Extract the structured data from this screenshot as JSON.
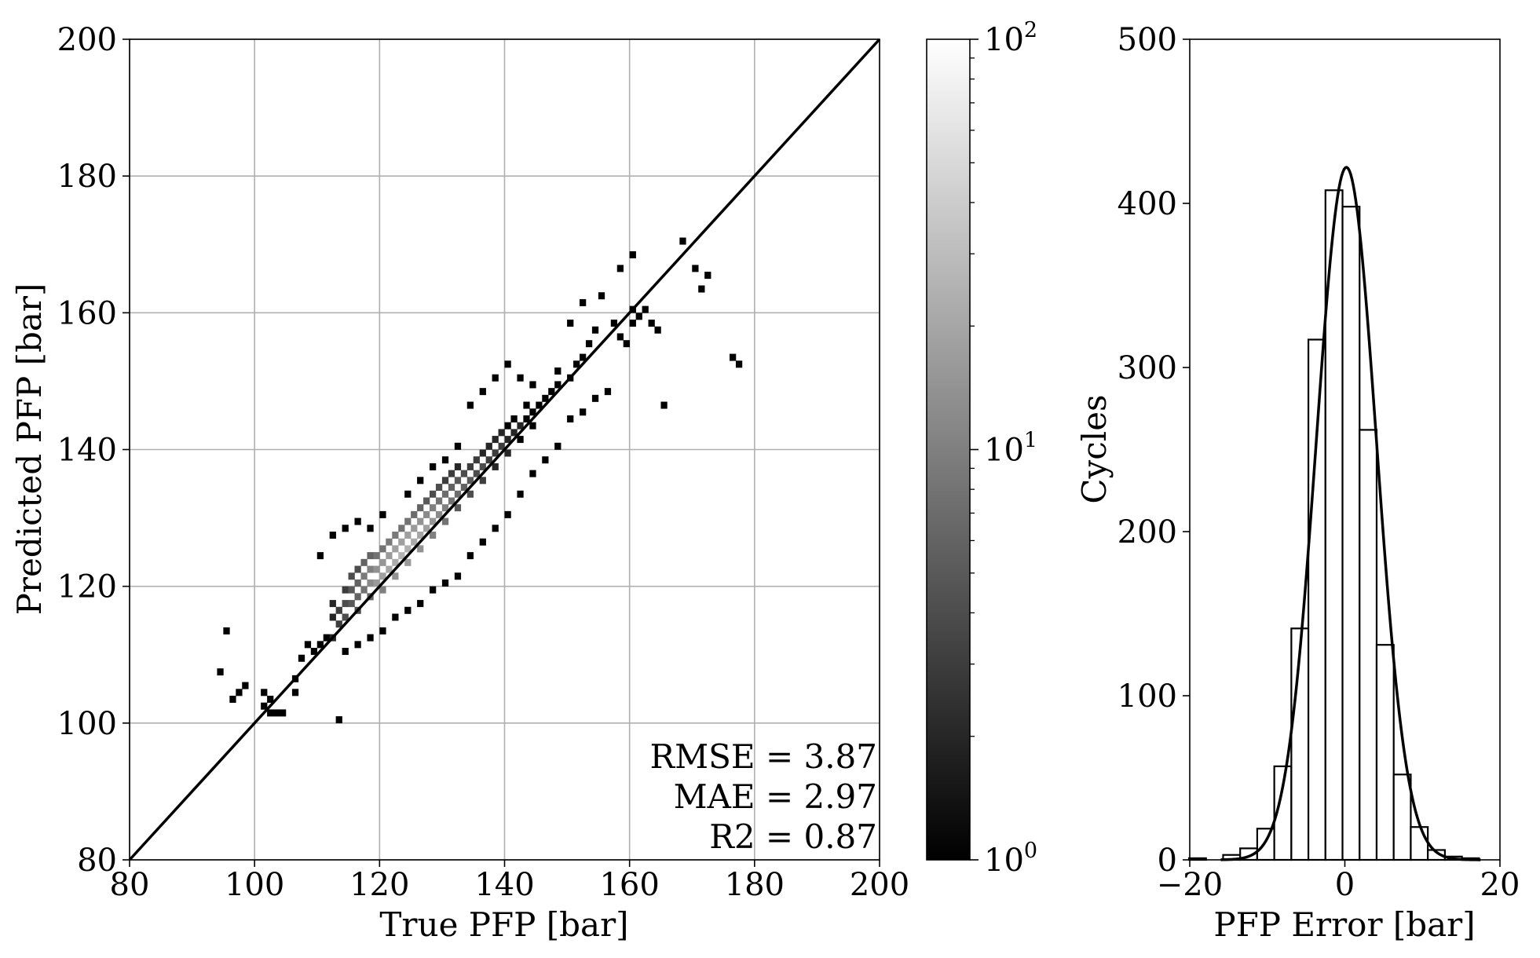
{
  "chart_data": [
    {
      "type": "heatmap",
      "chart_kind": "2D density histogram with identity line",
      "xlabel": "True PFP [bar]",
      "ylabel": "Predicted PFP [bar]",
      "xlim": [
        80,
        200
      ],
      "ylim": [
        80,
        200
      ],
      "xticks": [
        "80",
        "100",
        "120",
        "140",
        "160",
        "180",
        "200"
      ],
      "yticks": [
        "80",
        "100",
        "120",
        "140",
        "160",
        "180",
        "200"
      ],
      "grid": true,
      "identity_line": [
        [
          80,
          80
        ],
        [
          200,
          200
        ]
      ],
      "colormap": "gray",
      "color_scale": "log",
      "colorbar": {
        "min": 1,
        "max": 100,
        "ticks": [
          {
            "base": "10",
            "exp": "0"
          },
          {
            "base": "10",
            "exp": "1"
          },
          {
            "base": "10",
            "exp": "2"
          }
        ]
      },
      "annotations": [
        "RMSE = 3.87",
        "MAE = 2.97",
        "R2 = 0.87"
      ],
      "cells": [
        [
          95,
          113,
          1
        ],
        [
          96,
          103,
          1
        ],
        [
          97,
          104,
          1
        ],
        [
          98,
          105,
          1
        ],
        [
          94,
          107,
          1
        ],
        [
          101,
          102,
          1
        ],
        [
          102,
          101,
          1
        ],
        [
          103,
          101,
          1
        ],
        [
          104,
          101,
          1
        ],
        [
          101,
          104,
          1
        ],
        [
          102,
          103,
          1
        ],
        [
          106,
          104,
          1
        ],
        [
          106,
          106,
          1
        ],
        [
          113,
          100,
          1
        ],
        [
          107,
          109,
          1
        ],
        [
          108,
          111,
          1
        ],
        [
          109,
          110,
          1
        ],
        [
          110,
          111,
          1
        ],
        [
          111,
          112,
          1
        ],
        [
          112,
          112,
          2
        ],
        [
          112,
          115,
          2
        ],
        [
          112,
          117,
          2
        ],
        [
          113,
          114,
          3
        ],
        [
          113,
          116,
          3
        ],
        [
          114,
          115,
          4
        ],
        [
          114,
          117,
          4
        ],
        [
          114,
          119,
          3
        ],
        [
          115,
          117,
          5
        ],
        [
          115,
          119,
          5
        ],
        [
          115,
          121,
          4
        ],
        [
          116,
          116,
          4
        ],
        [
          116,
          118,
          6
        ],
        [
          116,
          120,
          6
        ],
        [
          116,
          122,
          4
        ],
        [
          117,
          119,
          8
        ],
        [
          117,
          121,
          9
        ],
        [
          117,
          123,
          6
        ],
        [
          118,
          118,
          6
        ],
        [
          118,
          120,
          12
        ],
        [
          118,
          122,
          10
        ],
        [
          118,
          124,
          6
        ],
        [
          119,
          120,
          16
        ],
        [
          119,
          122,
          14
        ],
        [
          119,
          124,
          8
        ],
        [
          120,
          119,
          10
        ],
        [
          120,
          121,
          18
        ],
        [
          120,
          123,
          15
        ],
        [
          120,
          125,
          8
        ],
        [
          121,
          122,
          20
        ],
        [
          121,
          124,
          16
        ],
        [
          121,
          126,
          9
        ],
        [
          122,
          121,
          14
        ],
        [
          122,
          123,
          22
        ],
        [
          122,
          125,
          18
        ],
        [
          122,
          127,
          9
        ],
        [
          123,
          124,
          25
        ],
        [
          123,
          126,
          18
        ],
        [
          123,
          128,
          8
        ],
        [
          124,
          123,
          16
        ],
        [
          124,
          125,
          24
        ],
        [
          124,
          127,
          18
        ],
        [
          124,
          129,
          8
        ],
        [
          125,
          126,
          22
        ],
        [
          125,
          128,
          16
        ],
        [
          125,
          130,
          7
        ],
        [
          126,
          125,
          14
        ],
        [
          126,
          127,
          20
        ],
        [
          126,
          129,
          14
        ],
        [
          126,
          131,
          6
        ],
        [
          127,
          128,
          18
        ],
        [
          127,
          130,
          12
        ],
        [
          127,
          132,
          5
        ],
        [
          128,
          127,
          10
        ],
        [
          128,
          129,
          15
        ],
        [
          128,
          131,
          10
        ],
        [
          128,
          133,
          4
        ],
        [
          129,
          130,
          12
        ],
        [
          129,
          132,
          8
        ],
        [
          129,
          134,
          4
        ],
        [
          130,
          129,
          8
        ],
        [
          130,
          131,
          10
        ],
        [
          130,
          133,
          7
        ],
        [
          130,
          135,
          3
        ],
        [
          131,
          132,
          8
        ],
        [
          131,
          134,
          6
        ],
        [
          131,
          136,
          3
        ],
        [
          132,
          131,
          5
        ],
        [
          132,
          133,
          7
        ],
        [
          132,
          135,
          5
        ],
        [
          132,
          137,
          2
        ],
        [
          133,
          134,
          6
        ],
        [
          133,
          136,
          4
        ],
        [
          134,
          133,
          4
        ],
        [
          134,
          135,
          5
        ],
        [
          134,
          137,
          3
        ],
        [
          135,
          136,
          4
        ],
        [
          135,
          138,
          3
        ],
        [
          136,
          135,
          3
        ],
        [
          136,
          137,
          4
        ],
        [
          136,
          139,
          2
        ],
        [
          137,
          138,
          3
        ],
        [
          137,
          140,
          2
        ],
        [
          138,
          137,
          2
        ],
        [
          138,
          139,
          3
        ],
        [
          138,
          141,
          2
        ],
        [
          139,
          140,
          3
        ],
        [
          139,
          142,
          2
        ],
        [
          140,
          139,
          2
        ],
        [
          140,
          141,
          2
        ],
        [
          140,
          143,
          1
        ],
        [
          141,
          142,
          2
        ],
        [
          141,
          144,
          1
        ],
        [
          142,
          141,
          1
        ],
        [
          142,
          143,
          2
        ],
        [
          143,
          144,
          1
        ],
        [
          143,
          146,
          1
        ],
        [
          144,
          143,
          1
        ],
        [
          144,
          145,
          1
        ],
        [
          145,
          146,
          1
        ],
        [
          146,
          147,
          1
        ],
        [
          147,
          148,
          1
        ],
        [
          148,
          149,
          1
        ],
        [
          148,
          151,
          1
        ],
        [
          150,
          150,
          1
        ],
        [
          151,
          152,
          1
        ],
        [
          152,
          153,
          1
        ],
        [
          153,
          155,
          1
        ],
        [
          154,
          157,
          1
        ],
        [
          157,
          158,
          1
        ],
        [
          158,
          156,
          1
        ],
        [
          159,
          155,
          1
        ],
        [
          160,
          158,
          1
        ],
        [
          160,
          160,
          1
        ],
        [
          161,
          159,
          1
        ],
        [
          163,
          158,
          1
        ],
        [
          164,
          157,
          1
        ],
        [
          165,
          146,
          1
        ],
        [
          168,
          170,
          1
        ],
        [
          170,
          166,
          1
        ],
        [
          171,
          163,
          1
        ],
        [
          172,
          165,
          1
        ],
        [
          176,
          153,
          1
        ],
        [
          177,
          152,
          1
        ],
        [
          158,
          166,
          1
        ],
        [
          160,
          168,
          1
        ],
        [
          162,
          160,
          1
        ],
        [
          110,
          124,
          1
        ],
        [
          112,
          127,
          1
        ],
        [
          114,
          128,
          1
        ],
        [
          116,
          129,
          1
        ],
        [
          118,
          128,
          1
        ],
        [
          120,
          130,
          1
        ],
        [
          124,
          133,
          1
        ],
        [
          126,
          135,
          1
        ],
        [
          128,
          137,
          1
        ],
        [
          130,
          138,
          1
        ],
        [
          132,
          140,
          1
        ],
        [
          122,
          115,
          1
        ],
        [
          124,
          116,
          1
        ],
        [
          126,
          117,
          1
        ],
        [
          128,
          119,
          1
        ],
        [
          130,
          120,
          1
        ],
        [
          132,
          121,
          1
        ],
        [
          134,
          124,
          1
        ],
        [
          136,
          126,
          1
        ],
        [
          138,
          128,
          1
        ],
        [
          140,
          130,
          1
        ],
        [
          142,
          133,
          1
        ],
        [
          144,
          136,
          1
        ],
        [
          146,
          138,
          1
        ],
        [
          148,
          140,
          1
        ],
        [
          120,
          113,
          1
        ],
        [
          118,
          112,
          1
        ],
        [
          116,
          111,
          1
        ],
        [
          114,
          110,
          1
        ],
        [
          150,
          144,
          1
        ],
        [
          152,
          145,
          1
        ],
        [
          154,
          147,
          1
        ],
        [
          156,
          148,
          1
        ],
        [
          134,
          146,
          1
        ],
        [
          136,
          148,
          1
        ],
        [
          138,
          150,
          1
        ],
        [
          140,
          152,
          1
        ],
        [
          142,
          150,
          1
        ],
        [
          144,
          149,
          1
        ],
        [
          150,
          158,
          1
        ],
        [
          152,
          161,
          1
        ],
        [
          155,
          162,
          1
        ]
      ]
    },
    {
      "type": "histogram",
      "chart_kind": "histogram with fitted normal curve",
      "xlabel": "PFP Error [bar]",
      "ylabel": "Cycles",
      "xlim": [
        -20,
        20
      ],
      "ylim": [
        0,
        500
      ],
      "xticks": [
        "−20",
        "0",
        "20"
      ],
      "yticks": [
        "0",
        "100",
        "200",
        "300",
        "400",
        "500"
      ],
      "grid": false,
      "bin_width": 2.2,
      "bins": [
        {
          "x0": -20.1,
          "count": 1
        },
        {
          "x0": -17.9,
          "count": 0
        },
        {
          "x0": -15.7,
          "count": 3
        },
        {
          "x0": -13.5,
          "count": 7
        },
        {
          "x0": -11.3,
          "count": 19
        },
        {
          "x0": -9.1,
          "count": 57
        },
        {
          "x0": -6.9,
          "count": 141
        },
        {
          "x0": -4.7,
          "count": 317
        },
        {
          "x0": -2.5,
          "count": 408
        },
        {
          "x0": -0.3,
          "count": 398
        },
        {
          "x0": 1.9,
          "count": 262
        },
        {
          "x0": 4.1,
          "count": 131
        },
        {
          "x0": 6.3,
          "count": 52
        },
        {
          "x0": 8.5,
          "count": 20
        },
        {
          "x0": 10.7,
          "count": 6
        },
        {
          "x0": 12.9,
          "count": 2
        },
        {
          "x0": 15.1,
          "count": 1
        }
      ],
      "fit_curve": {
        "distribution": "normal",
        "mean": 0.2,
        "sigma": 3.87,
        "peak": 422,
        "range": [
          -16,
          17.5
        ]
      }
    }
  ]
}
